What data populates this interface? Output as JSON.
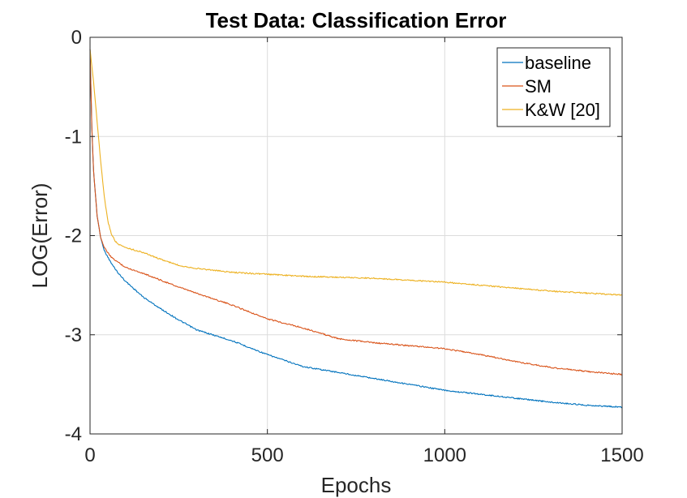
{
  "chart_data": {
    "type": "line",
    "title": "Test Data: Classification Error",
    "xlabel": "Epochs",
    "ylabel": "LOG(Error)",
    "xlim": [
      0,
      1500
    ],
    "ylim": [
      -4,
      0
    ],
    "xticks": [
      0,
      500,
      1000,
      1500
    ],
    "xtick_labels": [
      "0",
      "500",
      "1000",
      "1500"
    ],
    "yticks": [
      0,
      -1,
      -2,
      -3,
      -4
    ],
    "ytick_labels": [
      "0",
      "-1",
      "-2",
      "-3",
      "-4"
    ],
    "grid": true,
    "legend_position": "top-right",
    "series": [
      {
        "name": "baseline",
        "color": "#0072BD",
        "x": [
          0,
          5,
          10,
          20,
          30,
          40,
          60,
          80,
          100,
          150,
          200,
          250,
          300,
          400,
          500,
          600,
          700,
          800,
          900,
          1000,
          1100,
          1200,
          1300,
          1400,
          1500
        ],
        "y": [
          -0.12,
          -0.9,
          -1.35,
          -1.8,
          -2.02,
          -2.15,
          -2.28,
          -2.38,
          -2.46,
          -2.62,
          -2.74,
          -2.85,
          -2.95,
          -3.06,
          -3.2,
          -3.32,
          -3.38,
          -3.44,
          -3.5,
          -3.56,
          -3.6,
          -3.64,
          -3.68,
          -3.71,
          -3.73
        ]
      },
      {
        "name": "SM",
        "color": "#D95319",
        "x": [
          0,
          5,
          10,
          20,
          30,
          40,
          60,
          80,
          100,
          150,
          200,
          250,
          300,
          400,
          500,
          600,
          700,
          800,
          900,
          1000,
          1100,
          1200,
          1300,
          1400,
          1500
        ],
        "y": [
          -0.12,
          -0.9,
          -1.35,
          -1.8,
          -2.02,
          -2.12,
          -2.22,
          -2.27,
          -2.32,
          -2.38,
          -2.45,
          -2.52,
          -2.58,
          -2.7,
          -2.84,
          -2.93,
          -3.04,
          -3.08,
          -3.11,
          -3.14,
          -3.2,
          -3.27,
          -3.33,
          -3.37,
          -3.4
        ]
      },
      {
        "name": "K&W [20]",
        "color": "#EDB120",
        "x": [
          0,
          10,
          20,
          30,
          40,
          50,
          60,
          70,
          80,
          100,
          150,
          200,
          250,
          300,
          400,
          500,
          600,
          700,
          800,
          900,
          1000,
          1100,
          1200,
          1300,
          1400,
          1500
        ],
        "y": [
          -0.12,
          -0.45,
          -0.85,
          -1.25,
          -1.6,
          -1.85,
          -1.98,
          -2.05,
          -2.09,
          -2.12,
          -2.17,
          -2.24,
          -2.3,
          -2.33,
          -2.37,
          -2.39,
          -2.41,
          -2.42,
          -2.43,
          -2.45,
          -2.47,
          -2.5,
          -2.53,
          -2.56,
          -2.58,
          -2.6
        ]
      }
    ]
  }
}
